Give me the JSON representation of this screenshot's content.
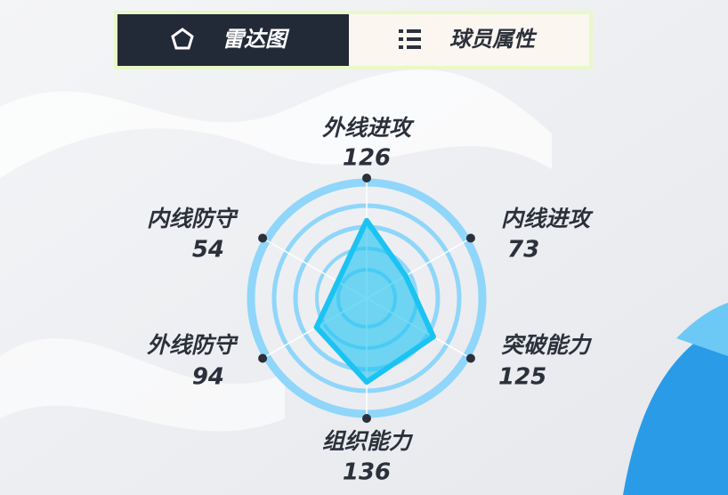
{
  "tabs": [
    "雷达图",
    "球员属性"
  ],
  "chart_data": {
    "type": "radar",
    "categories": [
      "外线进攻",
      "内线进攻",
      "突破能力",
      "组织能力",
      "外线防守",
      "内线防守"
    ],
    "values": [
      126,
      73,
      125,
      136,
      94,
      54
    ],
    "rlim": [
      0,
      195
    ],
    "color": "#1bc3f2"
  }
}
